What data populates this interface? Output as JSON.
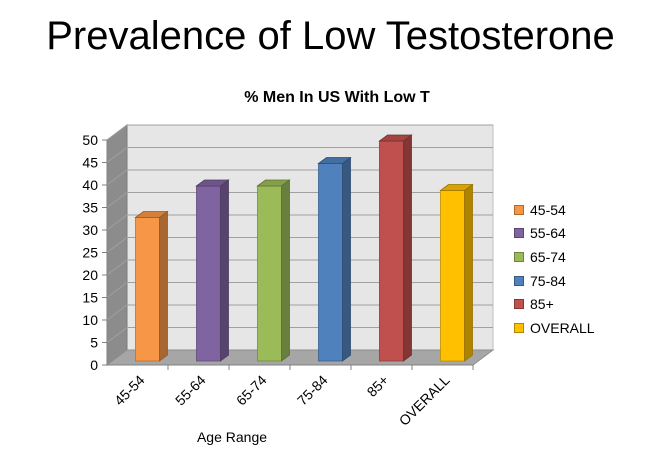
{
  "slide": {
    "title": "Prevalence of Low Testosterone"
  },
  "chart_data": {
    "type": "bar",
    "title": "% Men In US With Low T",
    "xlabel": "Age Range",
    "ylabel": "",
    "categories": [
      "45-54",
      "55-64",
      "65-74",
      "75-84",
      "85+",
      "OVERALL"
    ],
    "values": [
      31,
      38,
      38,
      43,
      48,
      37
    ],
    "ylim": [
      0,
      50
    ],
    "yticks": [
      "0",
      "5",
      "10",
      "15",
      "20",
      "25",
      "30",
      "35",
      "40",
      "45",
      "50"
    ],
    "colors": [
      "#F79646",
      "#8064A2",
      "#9BBB59",
      "#4F81BD",
      "#C0504D",
      "#FFC000"
    ],
    "grid": true,
    "style": "3d-column",
    "legend": {
      "position": "right",
      "entries": [
        "45-54",
        "55-64",
        "65-74",
        "75-84",
        "85+",
        "OVERALL"
      ]
    }
  }
}
